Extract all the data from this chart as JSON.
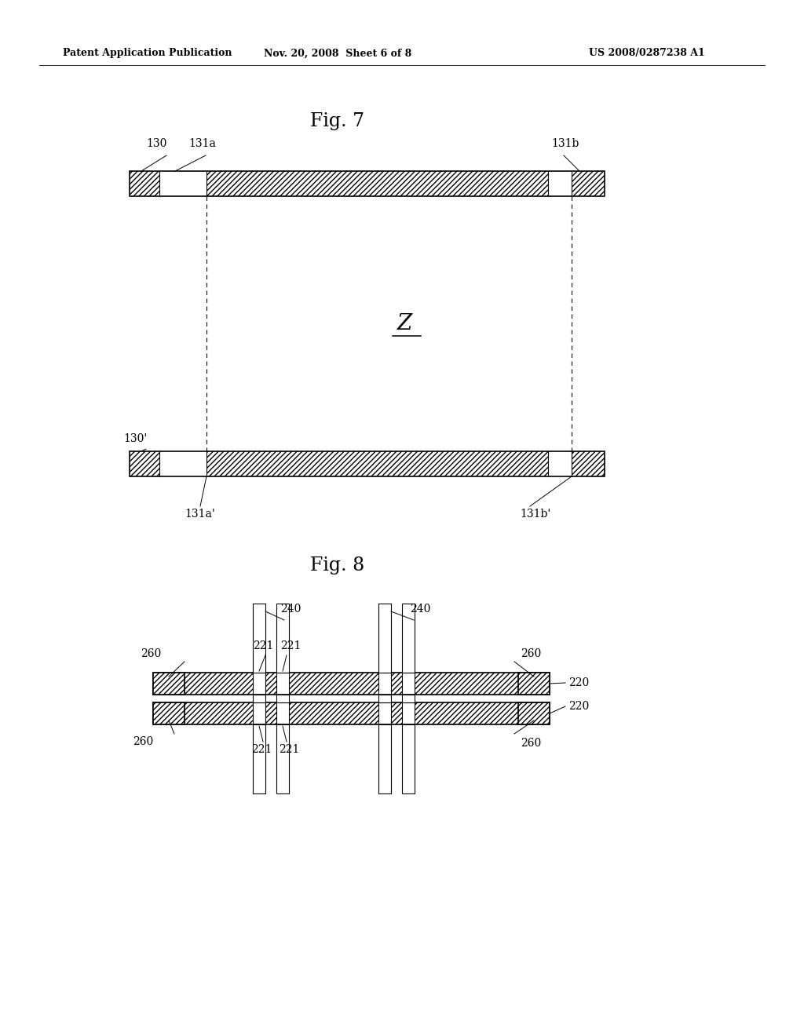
{
  "bg_color": "#ffffff",
  "header_left": "Patent Application Publication",
  "header_mid": "Nov. 20, 2008  Sheet 6 of 8",
  "header_right": "US 2008/0287238 A1",
  "fig7_title": "Fig. 7",
  "fig8_title": "Fig. 8"
}
